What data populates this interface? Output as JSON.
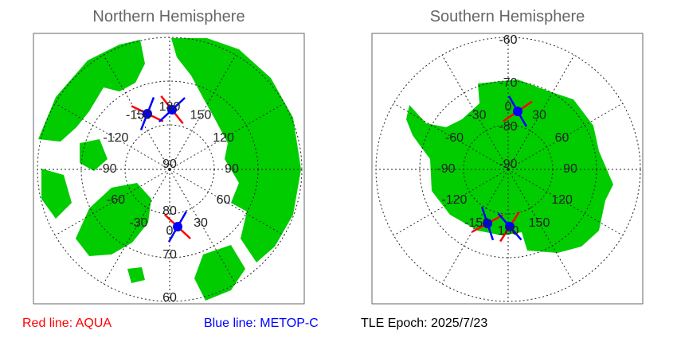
{
  "north": {
    "title": "Northern Hemisphere",
    "lon_labels": [
      "0",
      "30",
      "60",
      "90",
      "120",
      "150",
      "180",
      "-150",
      "-120",
      "-90",
      "-60",
      "-30"
    ],
    "lat_labels": [
      "90",
      "80",
      "70",
      "60"
    ]
  },
  "south": {
    "title": "Southern Hemisphere",
    "lon_labels": [
      "0",
      "30",
      "60",
      "90",
      "120",
      "150",
      "180",
      "-150",
      "-120",
      "-90",
      "-60",
      "-30"
    ],
    "lat_labels": [
      "-90",
      "-80",
      "-70",
      "-60"
    ]
  },
  "legend": {
    "red_label": "Red line: AQUA",
    "blue_label": "Blue line: METOP-C",
    "epoch": "TLE Epoch: 2025/7/23"
  },
  "colors": {
    "land": "#00cc00",
    "aqua": "#ff0000",
    "metop": "#0000ff",
    "grid": "#222222",
    "frame": "#666666"
  }
}
